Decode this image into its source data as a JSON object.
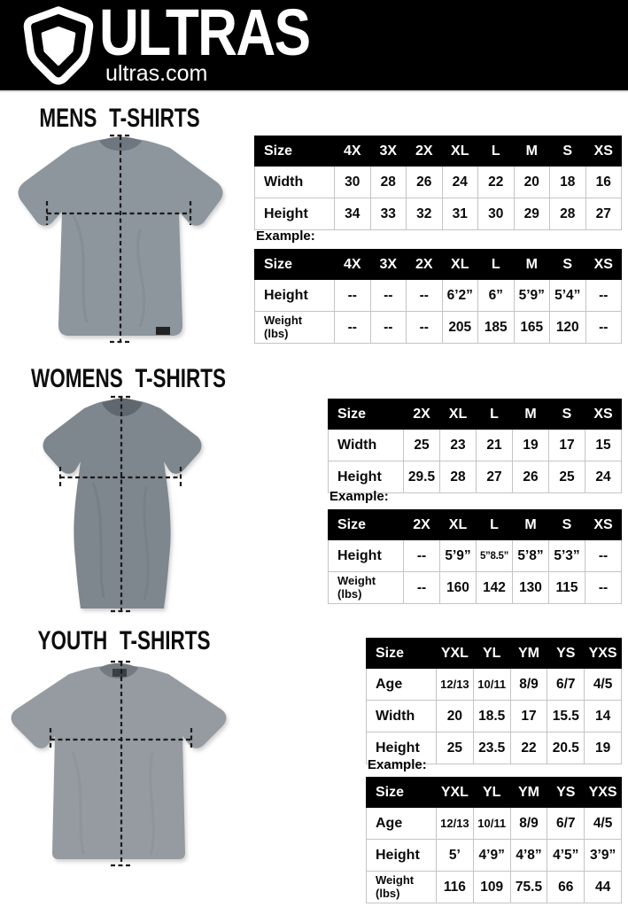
{
  "brand": {
    "name": "ULTRAS",
    "site": "ultras.com",
    "logo_icon": "pentagon-badge-icon"
  },
  "colors": {
    "header_bg": "#000000",
    "table_header_bg": "#000000",
    "table_border": "#c4c4c4",
    "mens_shirt": "#8d959d",
    "womens_shirt": "#7e868e",
    "youth_shirt": "#959ba0",
    "dash_line": "#1b1b1b"
  },
  "sections": [
    {
      "id": "mens",
      "title": "MENS T-SHIRTS",
      "example_label": "Example:",
      "size_table": {
        "header": [
          "Size",
          "4X",
          "3X",
          "2X",
          "XL",
          "L",
          "M",
          "S",
          "XS"
        ],
        "rows": [
          {
            "label": "Width",
            "values": [
              "30",
              "28",
              "26",
              "24",
              "22",
              "20",
              "18",
              "16"
            ]
          },
          {
            "label": "Height",
            "values": [
              "34",
              "33",
              "32",
              "31",
              "30",
              "29",
              "28",
              "27"
            ]
          }
        ]
      },
      "example_table": {
        "header": [
          "Size",
          "4X",
          "3X",
          "2X",
          "XL",
          "L",
          "M",
          "S",
          "XS"
        ],
        "rows": [
          {
            "label": "Height",
            "values": [
              "--",
              "--",
              "--",
              "6’2”",
              "6”",
              "5’9”",
              "5’4”",
              "--"
            ]
          },
          {
            "label": "Weight",
            "sublabel": "(lbs)",
            "values": [
              "--",
              "--",
              "--",
              "205",
              "185",
              "165",
              "120",
              "--"
            ]
          }
        ]
      }
    },
    {
      "id": "womens",
      "title": "WOMENS T-SHIRTS",
      "example_label": "Example:",
      "size_table": {
        "header": [
          "Size",
          "2X",
          "XL",
          "L",
          "M",
          "S",
          "XS"
        ],
        "rows": [
          {
            "label": "Width",
            "values": [
              "25",
              "23",
              "21",
              "19",
              "17",
              "15"
            ]
          },
          {
            "label": "Height",
            "values": [
              "29.5",
              "28",
              "27",
              "26",
              "25",
              "24"
            ]
          }
        ]
      },
      "example_table": {
        "header": [
          "Size",
          "2X",
          "XL",
          "L",
          "M",
          "S",
          "XS"
        ],
        "rows": [
          {
            "label": "Height",
            "values": [
              "--",
              "5’9”",
              "5”8.5”",
              "5’8”",
              "5’3”",
              "--"
            ]
          },
          {
            "label": "Weight",
            "sublabel": "(lbs)",
            "values": [
              "--",
              "160",
              "142",
              "130",
              "115",
              "--"
            ]
          }
        ]
      }
    },
    {
      "id": "youth",
      "title": "YOUTH T-SHIRTS",
      "example_label": "Example:",
      "size_table": {
        "header": [
          "Size",
          "YXL",
          "YL",
          "YM",
          "YS",
          "YXS"
        ],
        "rows": [
          {
            "label": "Age",
            "values": [
              "12/13",
              "10/11",
              "8/9",
              "6/7",
              "4/5"
            ]
          },
          {
            "label": "Width",
            "values": [
              "20",
              "18.5",
              "17",
              "15.5",
              "14"
            ]
          },
          {
            "label": "Height",
            "values": [
              "25",
              "23.5",
              "22",
              "20.5",
              "19"
            ]
          }
        ]
      },
      "example_table": {
        "header": [
          "Size",
          "YXL",
          "YL",
          "YM",
          "YS",
          "YXS"
        ],
        "rows": [
          {
            "label": "Age",
            "values": [
              "12/13",
              "10/11",
              "8/9",
              "6/7",
              "4/5"
            ]
          },
          {
            "label": "Height",
            "values": [
              "5’",
              "4’9”",
              "4’8”",
              "4’5”",
              "3’9”"
            ]
          },
          {
            "label": "Weight",
            "sublabel": "(lbs)",
            "values": [
              "116",
              "109",
              "75.5",
              "66",
              "44"
            ]
          }
        ]
      }
    }
  ]
}
